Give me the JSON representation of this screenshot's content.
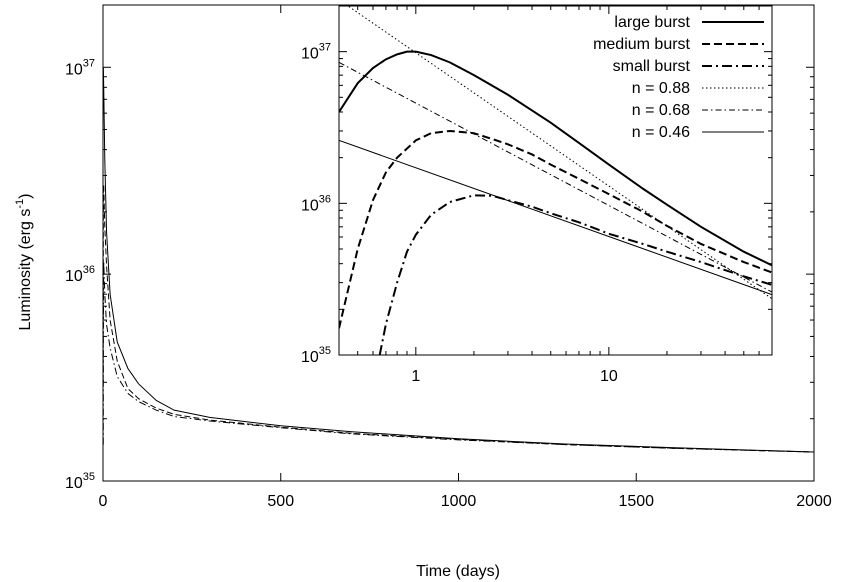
{
  "chart_data": [
    {
      "type": "line",
      "xlabel": "Time (days)",
      "ylabel": "Luminosity (erg s",
      "ylabel_unit_exp": "-1",
      "ylabel_close": ")",
      "xlim": [
        0,
        2000
      ],
      "ylim": [
        1e+35,
        2e+37
      ],
      "yscale": "log",
      "grid": false,
      "x_ticks": [
        0,
        500,
        1000,
        1500,
        2000
      ],
      "x_tick_labels": [
        "0",
        "500",
        "1000",
        "1500",
        "2000"
      ],
      "y_ticks": [
        1e+35,
        1e+36,
        1e+37
      ],
      "y_tick_labels": [
        {
          "base": "10",
          "exp": "35"
        },
        {
          "base": "10",
          "exp": "36"
        },
        {
          "base": "10",
          "exp": "37"
        }
      ],
      "series": [
        {
          "name": "large burst",
          "style": "solid",
          "x": [
            0.5,
            1,
            2,
            5,
            10,
            20,
            40,
            70,
            100,
            150,
            200,
            300,
            500,
            700,
            1000,
            1300,
            1600,
            2000
          ],
          "y": [
            8e+36,
            1e+37,
            8e+36,
            3.6e+36,
            1.6e+36,
            8e+35,
            4.7e+35,
            3.5e+35,
            2.95e+35,
            2.45e+35,
            2.2e+35,
            2.03e+35,
            1.85e+35,
            1.73e+35,
            1.6e+35,
            1.51e+35,
            1.45e+35,
            1.38e+35
          ]
        },
        {
          "name": "medium burst",
          "style": "dashed",
          "x": [
            0.5,
            1,
            2,
            5,
            10,
            20,
            40,
            70,
            100,
            150,
            200,
            300,
            500,
            700,
            1000,
            1300,
            1600,
            2000
          ],
          "y": [
            3e+35,
            2.6e+36,
            2.7e+36,
            1.7e+36,
            1.1e+36,
            6e+35,
            3.8e+35,
            2.8e+35,
            2.5e+35,
            2.25e+35,
            2.1e+35,
            1.97e+35,
            1.82e+35,
            1.7e+35,
            1.59e+35,
            1.5e+35,
            1.44e+35,
            1.38e+35
          ]
        },
        {
          "name": "small burst",
          "style": "dashdot",
          "x": [
            0.8,
            1,
            2,
            5,
            10,
            20,
            40,
            70,
            100,
            150,
            200,
            300,
            500,
            700,
            1000,
            1300,
            1600,
            2000
          ],
          "y": [
            1.5e+35,
            5e+35,
            1.15e+36,
            8e+35,
            5.7e+35,
            4.4e+35,
            3.2e+35,
            2.65e+35,
            2.42e+35,
            2.2e+35,
            2.05e+35,
            1.95e+35,
            1.81e+35,
            1.69e+35,
            1.58e+35,
            1.5e+35,
            1.44e+35,
            1.38e+35
          ]
        }
      ]
    },
    {
      "type": "line",
      "inset": true,
      "xscale": "log",
      "yscale": "log",
      "xlim": [
        0.4,
        70
      ],
      "ylim": [
        1e+35,
        2e+37
      ],
      "grid": false,
      "legend": "top-right",
      "x_ticks": [
        1,
        10
      ],
      "x_tick_labels": [
        "1",
        "10"
      ],
      "y_ticks": [
        1e+35,
        1e+36,
        1e+37
      ],
      "y_tick_labels": [
        {
          "base": "10",
          "exp": "35"
        },
        {
          "base": "10",
          "exp": "36"
        },
        {
          "base": "10",
          "exp": "37"
        }
      ],
      "series": [
        {
          "name": "large burst",
          "style": "solid",
          "width": 2,
          "x": [
            0.4,
            0.5,
            0.6,
            0.7,
            0.8,
            0.9,
            1.0,
            1.2,
            1.5,
            2,
            3,
            5,
            7,
            10,
            15,
            20,
            30,
            50,
            70
          ],
          "y": [
            4e+36,
            6.2e+36,
            7.8e+36,
            8.9e+36,
            9.6e+36,
            1e+37,
            1e+37,
            9.5e+36,
            8.5e+36,
            7e+36,
            5.2e+36,
            3.4e+36,
            2.5e+36,
            1.8e+36,
            1.25e+36,
            9.8e+35,
            7e+35,
            4.8e+35,
            3.9e+35
          ]
        },
        {
          "name": "medium burst",
          "style": "dashed",
          "width": 2,
          "x": [
            0.4,
            0.5,
            0.6,
            0.7,
            0.8,
            1.0,
            1.2,
            1.5,
            2,
            2.5,
            3,
            4,
            5,
            7,
            10,
            15,
            20,
            30,
            50,
            70
          ],
          "y": [
            1.5e+35,
            5e+35,
            1.05e+36,
            1.6e+36,
            2e+36,
            2.6e+36,
            2.9e+36,
            3e+36,
            2.9e+36,
            2.65e+36,
            2.45e+36,
            2.1e+36,
            1.8e+36,
            1.45e+36,
            1.15e+36,
            8.8e+35,
            7.1e+35,
            5.4e+35,
            4.1e+35,
            3.5e+35
          ]
        },
        {
          "name": "small burst",
          "style": "dashdot",
          "width": 2,
          "x": [
            0.65,
            0.7,
            0.8,
            0.9,
            1.0,
            1.2,
            1.5,
            2,
            2.5,
            3,
            4,
            5,
            7,
            10,
            15,
            20,
            30,
            50,
            70
          ],
          "y": [
            1e+35,
            1.6e+35,
            3e+35,
            4.8e+35,
            6.2e+35,
            8.4e+35,
            1.02e+36,
            1.13e+36,
            1.12e+36,
            1.05e+36,
            9.5e+35,
            8.6e+35,
            7.5e+35,
            6.3e+35,
            5.4e+35,
            4.8e+35,
            4.1e+35,
            3.3e+35,
            2.9e+35
          ]
        },
        {
          "name": "n = 0.88",
          "style": "dotted",
          "width": 1,
          "x": [
            0.4,
            70
          ],
          "y": [
            2.2e+37,
            2.35e+35
          ]
        },
        {
          "name": "n = 0.68",
          "style": "thindashdot",
          "width": 1,
          "x": [
            0.4,
            70
          ],
          "y": [
            8.5e+36,
            2.6e+35
          ]
        },
        {
          "name": "n = 0.46",
          "style": "solid",
          "width": 1,
          "x": [
            0.4,
            70
          ],
          "y": [
            2.6e+36,
            2.5e+35
          ]
        }
      ]
    }
  ]
}
